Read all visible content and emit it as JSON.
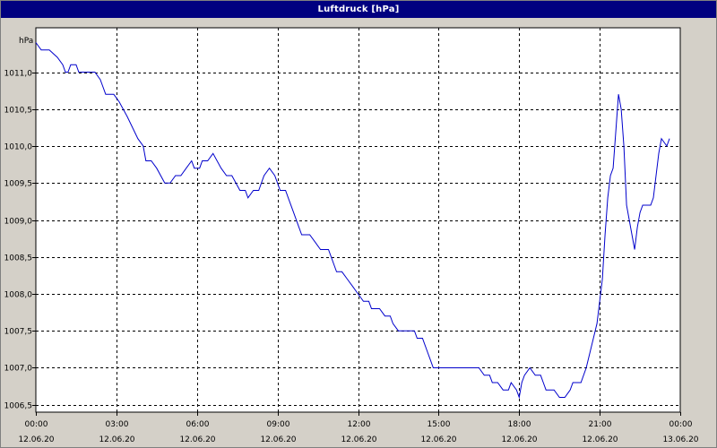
{
  "window": {
    "title": "Luftdruck [hPa]"
  },
  "chart_data": {
    "type": "line",
    "title": "Luftdruck [hPa]",
    "ylabel": "hPa",
    "ylim": [
      1006.4,
      1011.6
    ],
    "xlim_hours": [
      0,
      24
    ],
    "grid": true,
    "y_ticks": [
      1006.5,
      1007.0,
      1007.5,
      1008.0,
      1008.5,
      1009.0,
      1009.5,
      1010.0,
      1010.5,
      1011.0
    ],
    "y_tick_labels": [
      "1006,5",
      "1007,0",
      "1007,5",
      "1008,0",
      "1008,5",
      "1009,0",
      "1009,5",
      "1010,0",
      "1010,5",
      "1011,0"
    ],
    "x_ticks": [
      {
        "time": "00:00",
        "date": "12.06.20"
      },
      {
        "time": "03:00",
        "date": "12.06.20"
      },
      {
        "time": "06:00",
        "date": "12.06.20"
      },
      {
        "time": "09:00",
        "date": "12.06.20"
      },
      {
        "time": "12:00",
        "date": "12.06.20"
      },
      {
        "time": "15:00",
        "date": "12.06.20"
      },
      {
        "time": "18:00",
        "date": "12.06.20"
      },
      {
        "time": "21:00",
        "date": "12.06.20"
      },
      {
        "time": "00:00",
        "date": "13.06.20"
      }
    ],
    "series": [
      {
        "color": "#0000cc",
        "points": [
          [
            0.0,
            1011.4
          ],
          [
            0.2,
            1011.3
          ],
          [
            0.5,
            1011.3
          ],
          [
            0.8,
            1011.2
          ],
          [
            1.0,
            1011.1
          ],
          [
            1.1,
            1011.0
          ],
          [
            1.2,
            1011.0
          ],
          [
            1.3,
            1011.1
          ],
          [
            1.5,
            1011.1
          ],
          [
            1.6,
            1011.0
          ],
          [
            2.0,
            1011.0
          ],
          [
            2.2,
            1011.0
          ],
          [
            2.4,
            1010.9
          ],
          [
            2.5,
            1010.8
          ],
          [
            2.6,
            1010.7
          ],
          [
            2.9,
            1010.7
          ],
          [
            3.1,
            1010.6
          ],
          [
            3.4,
            1010.4
          ],
          [
            3.8,
            1010.1
          ],
          [
            4.0,
            1010.0
          ],
          [
            4.1,
            1009.8
          ],
          [
            4.3,
            1009.8
          ],
          [
            4.5,
            1009.7
          ],
          [
            4.8,
            1009.5
          ],
          [
            5.0,
            1009.5
          ],
          [
            5.2,
            1009.6
          ],
          [
            5.4,
            1009.6
          ],
          [
            5.6,
            1009.7
          ],
          [
            5.8,
            1009.8
          ],
          [
            5.9,
            1009.7
          ],
          [
            6.1,
            1009.7
          ],
          [
            6.2,
            1009.8
          ],
          [
            6.4,
            1009.8
          ],
          [
            6.6,
            1009.9
          ],
          [
            6.9,
            1009.7
          ],
          [
            7.1,
            1009.6
          ],
          [
            7.3,
            1009.6
          ],
          [
            7.6,
            1009.4
          ],
          [
            7.8,
            1009.4
          ],
          [
            7.9,
            1009.3
          ],
          [
            8.1,
            1009.4
          ],
          [
            8.3,
            1009.4
          ],
          [
            8.5,
            1009.6
          ],
          [
            8.7,
            1009.7
          ],
          [
            8.9,
            1009.6
          ],
          [
            9.1,
            1009.4
          ],
          [
            9.3,
            1009.4
          ],
          [
            9.4,
            1009.3
          ],
          [
            9.6,
            1009.1
          ],
          [
            9.8,
            1008.9
          ],
          [
            9.9,
            1008.8
          ],
          [
            10.2,
            1008.8
          ],
          [
            10.4,
            1008.7
          ],
          [
            10.6,
            1008.6
          ],
          [
            10.9,
            1008.6
          ],
          [
            11.0,
            1008.5
          ],
          [
            11.1,
            1008.4
          ],
          [
            11.2,
            1008.3
          ],
          [
            11.4,
            1008.3
          ],
          [
            11.6,
            1008.2
          ],
          [
            11.8,
            1008.1
          ],
          [
            12.0,
            1008.0
          ],
          [
            12.2,
            1007.9
          ],
          [
            12.4,
            1007.9
          ],
          [
            12.5,
            1007.8
          ],
          [
            12.8,
            1007.8
          ],
          [
            13.0,
            1007.7
          ],
          [
            13.2,
            1007.7
          ],
          [
            13.3,
            1007.6
          ],
          [
            13.5,
            1007.5
          ],
          [
            13.9,
            1007.5
          ],
          [
            14.1,
            1007.5
          ],
          [
            14.2,
            1007.4
          ],
          [
            14.4,
            1007.4
          ],
          [
            14.6,
            1007.2
          ],
          [
            14.7,
            1007.1
          ],
          [
            14.8,
            1007.0
          ],
          [
            15.0,
            1007.0
          ],
          [
            16.0,
            1007.0
          ],
          [
            16.5,
            1007.0
          ],
          [
            16.7,
            1006.9
          ],
          [
            16.9,
            1006.9
          ],
          [
            17.0,
            1006.8
          ],
          [
            17.2,
            1006.8
          ],
          [
            17.4,
            1006.7
          ],
          [
            17.6,
            1006.7
          ],
          [
            17.7,
            1006.8
          ],
          [
            17.9,
            1006.7
          ],
          [
            18.0,
            1006.6
          ],
          [
            18.1,
            1006.8
          ],
          [
            18.2,
            1006.9
          ],
          [
            18.4,
            1007.0
          ],
          [
            18.6,
            1006.9
          ],
          [
            18.8,
            1006.9
          ],
          [
            18.9,
            1006.8
          ],
          [
            19.0,
            1006.7
          ],
          [
            19.3,
            1006.7
          ],
          [
            19.5,
            1006.6
          ],
          [
            19.7,
            1006.6
          ],
          [
            19.9,
            1006.7
          ],
          [
            20.0,
            1006.8
          ],
          [
            20.3,
            1006.8
          ],
          [
            20.5,
            1007.0
          ],
          [
            20.7,
            1007.3
          ],
          [
            20.9,
            1007.6
          ],
          [
            21.1,
            1008.2
          ],
          [
            21.2,
            1008.8
          ],
          [
            21.3,
            1009.3
          ],
          [
            21.4,
            1009.6
          ],
          [
            21.5,
            1009.7
          ],
          [
            21.6,
            1010.2
          ],
          [
            21.7,
            1010.7
          ],
          [
            21.8,
            1010.5
          ],
          [
            21.9,
            1010.0
          ],
          [
            22.0,
            1009.2
          ],
          [
            22.1,
            1009.0
          ],
          [
            22.2,
            1008.8
          ],
          [
            22.3,
            1008.6
          ],
          [
            22.4,
            1008.9
          ],
          [
            22.5,
            1009.1
          ],
          [
            22.6,
            1009.2
          ],
          [
            22.8,
            1009.2
          ],
          [
            22.9,
            1009.2
          ],
          [
            23.0,
            1009.3
          ],
          [
            23.1,
            1009.6
          ],
          [
            23.2,
            1009.9
          ],
          [
            23.3,
            1010.1
          ],
          [
            23.5,
            1010.0
          ],
          [
            23.6,
            1010.1
          ]
        ]
      }
    ]
  }
}
